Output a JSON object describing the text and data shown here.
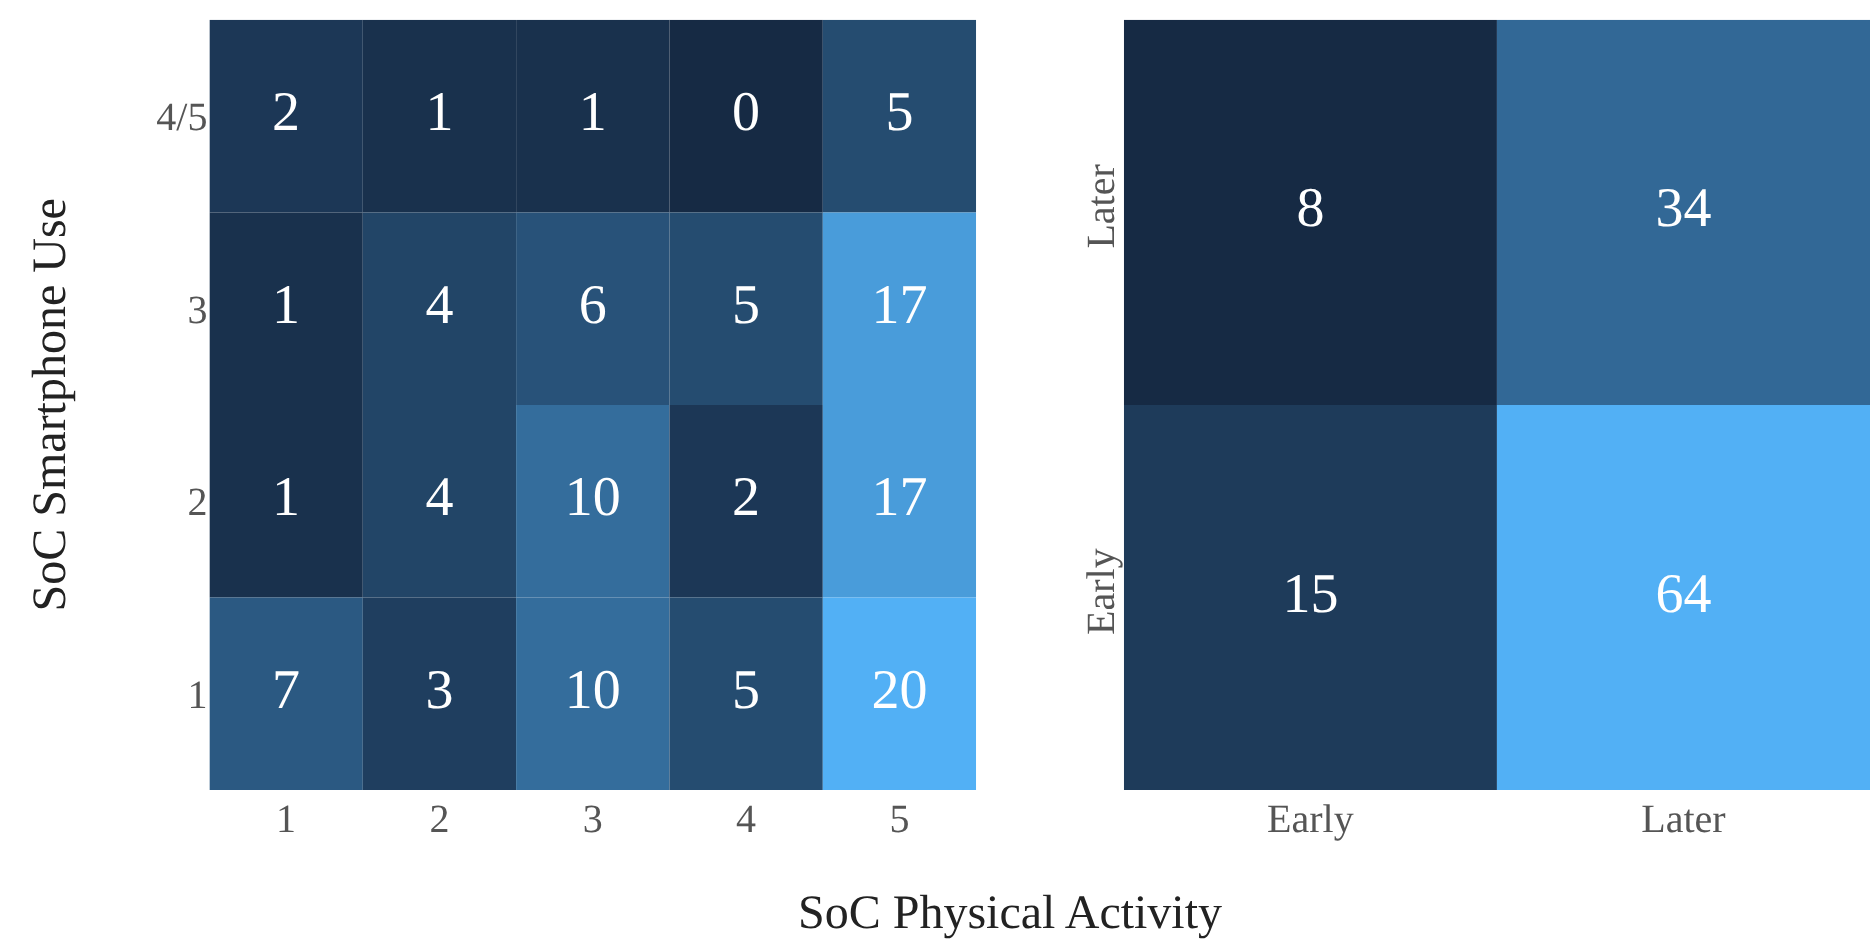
{
  "chart_data": [
    {
      "type": "heatmap",
      "xlabel": "SoC Physical Activity",
      "ylabel": "SoC Smartphone Use",
      "categories": [
        "1",
        "2",
        "3",
        "4",
        "5"
      ],
      "y_categories": [
        "4/5",
        "3",
        "2",
        "1"
      ],
      "cells": [
        [
          2,
          1,
          1,
          0,
          5
        ],
        [
          1,
          4,
          6,
          5,
          17
        ],
        [
          1,
          4,
          10,
          2,
          17
        ],
        [
          7,
          3,
          10,
          5,
          20
        ]
      ],
      "data_labels": true
    },
    {
      "type": "heatmap",
      "categories": [
        "Early",
        "Later"
      ],
      "y_categories": [
        "Later",
        "Early"
      ],
      "cells": [
        [
          8,
          34
        ],
        [
          15,
          64
        ]
      ],
      "data_labels": true
    }
  ]
}
